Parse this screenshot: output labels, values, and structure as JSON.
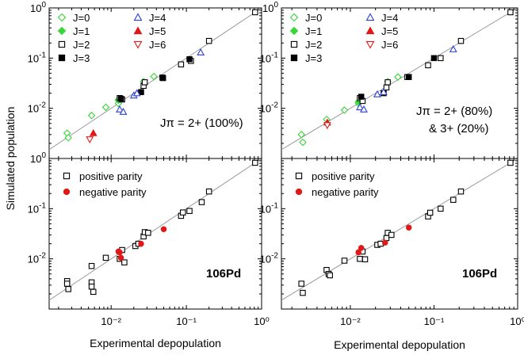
{
  "chart_data": {
    "type": "scatter",
    "xlabel": "Experimental depopulation",
    "ylabel": "Simulated population",
    "xscale": "log",
    "yscale": "log",
    "xlim": [
      0.0015,
      1
    ],
    "ylim": [
      0.001,
      1
    ],
    "x_ticks": [
      "10⁻²",
      "10⁻¹",
      "10⁰"
    ],
    "panels": [
      {
        "id": "top-left",
        "legend": "top-left",
        "annotation_lines": [
          "Jπ = 2+ (100%)"
        ],
        "series": [
          {
            "name": "J=0",
            "marker": "diamond-open",
            "color": "#38d638",
            "points": [
              [
                0.0026,
                0.0032
              ],
              [
                0.0027,
                0.0026
              ],
              [
                0.0055,
                0.0072
              ],
              [
                0.0085,
                0.0105
              ],
              [
                0.0125,
                0.0125
              ],
              [
                0.0125,
                0.0145
              ],
              [
                0.027,
                0.034
              ],
              [
                0.037,
                0.043
              ]
            ]
          },
          {
            "name": "J=1",
            "marker": "diamond-filled",
            "color": "#38d638",
            "points": [
              [
                0.0125,
                0.0148
              ],
              [
                0.0135,
                0.015
              ]
            ]
          },
          {
            "name": "J=2",
            "marker": "square-open",
            "color": "#000000",
            "points": [
              [
                0.013,
                0.016
              ],
              [
                0.014,
                0.015
              ],
              [
                0.027,
                0.028
              ],
              [
                0.028,
                0.033
              ],
              [
                0.048,
                0.041
              ],
              [
                0.085,
                0.075
              ],
              [
                0.115,
                0.088
              ],
              [
                0.2,
                0.22
              ],
              [
                0.82,
                0.82
              ]
            ]
          },
          {
            "name": "J=3",
            "marker": "square-filled",
            "color": "#000000",
            "points": [
              [
                0.0135,
                0.0155
              ],
              [
                0.025,
                0.021
              ],
              [
                0.049,
                0.04
              ],
              [
                0.11,
                0.095
              ]
            ]
          },
          {
            "name": "J=4",
            "marker": "triangle-up-open",
            "color": "#2b3fd6",
            "points": [
              [
                0.013,
                0.0095
              ],
              [
                0.0145,
                0.0085
              ],
              [
                0.02,
                0.018
              ],
              [
                0.022,
                0.02
              ],
              [
                0.155,
                0.13
              ]
            ]
          },
          {
            "name": "J=5",
            "marker": "triangle-up-filled",
            "color": "#e01818",
            "points": [
              [
                0.0058,
                0.0032
              ]
            ]
          },
          {
            "name": "J=6",
            "marker": "triangle-down-open",
            "color": "#e01818",
            "points": [
              [
                0.0052,
                0.0024
              ]
            ]
          }
        ]
      },
      {
        "id": "top-right",
        "legend": "top-left",
        "annotation_lines": [
          "Jπ = 2+ (80%)",
          "& 3+ (20%)"
        ],
        "series": [
          {
            "name": "J=0",
            "marker": "diamond-open",
            "color": "#38d638",
            "points": [
              [
                0.0026,
                0.003
              ],
              [
                0.0027,
                0.0021
              ],
              [
                0.0052,
                0.006
              ],
              [
                0.0085,
                0.0092
              ],
              [
                0.0125,
                0.0125
              ],
              [
                0.028,
                0.034
              ],
              [
                0.037,
                0.042
              ]
            ]
          },
          {
            "name": "J=1",
            "marker": "diamond-filled",
            "color": "#38d638",
            "points": [
              [
                0.0125,
                0.0135
              ],
              [
                0.0135,
                0.0142
              ]
            ]
          },
          {
            "name": "J=2",
            "marker": "square-open",
            "color": "#000000",
            "points": [
              [
                0.013,
                0.016
              ],
              [
                0.014,
                0.014
              ],
              [
                0.027,
                0.026
              ],
              [
                0.028,
                0.033
              ],
              [
                0.048,
                0.042
              ],
              [
                0.085,
                0.072
              ],
              [
                0.12,
                0.1
              ],
              [
                0.21,
                0.22
              ],
              [
                0.82,
                0.82
              ]
            ]
          },
          {
            "name": "J=3",
            "marker": "square-filled",
            "color": "#000000",
            "points": [
              [
                0.0135,
                0.017
              ],
              [
                0.025,
                0.02
              ],
              [
                0.05,
                0.042
              ],
              [
                0.1,
                0.1
              ]
            ]
          },
          {
            "name": "J=4",
            "marker": "triangle-up-open",
            "color": "#2b3fd6",
            "points": [
              [
                0.013,
                0.0105
              ],
              [
                0.0145,
                0.0095
              ],
              [
                0.021,
                0.019
              ],
              [
                0.025,
                0.021
              ],
              [
                0.17,
                0.15
              ]
            ]
          },
          {
            "name": "J=5",
            "marker": "triangle-up-filled",
            "color": "#e01818",
            "points": [
              [
                0.0053,
                0.0052
              ]
            ]
          },
          {
            "name": "J=6",
            "marker": "triangle-down-open",
            "color": "#e01818",
            "points": [
              [
                0.0053,
                0.0046
              ]
            ]
          }
        ]
      },
      {
        "id": "bottom-left",
        "legend": "top-left",
        "annotation_lines": [
          "106Pd"
        ],
        "series": [
          {
            "name": "positive parity",
            "marker": "square-open",
            "color": "#000000",
            "points": [
              [
                0.0026,
                0.0036
              ],
              [
                0.0026,
                0.0032
              ],
              [
                0.0027,
                0.0025
              ],
              [
                0.0055,
                0.0034
              ],
              [
                0.0055,
                0.0028
              ],
              [
                0.0058,
                0.0022
              ],
              [
                0.0055,
                0.0072
              ],
              [
                0.0085,
                0.0105
              ],
              [
                0.013,
                0.01
              ],
              [
                0.014,
                0.015
              ],
              [
                0.015,
                0.0085
              ],
              [
                0.021,
                0.018
              ],
              [
                0.023,
                0.02
              ],
              [
                0.027,
                0.028
              ],
              [
                0.028,
                0.034
              ],
              [
                0.031,
                0.033
              ],
              [
                0.085,
                0.072
              ],
              [
                0.09,
                0.084
              ],
              [
                0.11,
                0.09
              ],
              [
                0.16,
                0.135
              ],
              [
                0.2,
                0.22
              ],
              [
                0.82,
                0.82
              ]
            ]
          },
          {
            "name": "negative parity",
            "marker": "circle-filled",
            "color": "#e01818",
            "points": [
              [
                0.0125,
                0.014
              ],
              [
                0.013,
                0.0135
              ],
              [
                0.0135,
                0.0105
              ],
              [
                0.025,
                0.02
              ],
              [
                0.05,
                0.039
              ]
            ]
          }
        ]
      },
      {
        "id": "bottom-right",
        "legend": "top-left",
        "annotation_lines": [
          "106Pd"
        ],
        "series": [
          {
            "name": "positive parity",
            "marker": "square-open",
            "color": "#000000",
            "points": [
              [
                0.0026,
                0.0032
              ],
              [
                0.0027,
                0.0021
              ],
              [
                0.0052,
                0.006
              ],
              [
                0.0055,
                0.005
              ],
              [
                0.0057,
                0.0047
              ],
              [
                0.0085,
                0.0092
              ],
              [
                0.013,
                0.01
              ],
              [
                0.014,
                0.014
              ],
              [
                0.015,
                0.0098
              ],
              [
                0.021,
                0.019
              ],
              [
                0.023,
                0.02
              ],
              [
                0.027,
                0.026
              ],
              [
                0.028,
                0.033
              ],
              [
                0.031,
                0.03
              ],
              [
                0.085,
                0.07
              ],
              [
                0.09,
                0.083
              ],
              [
                0.12,
                0.1
              ],
              [
                0.17,
                0.15
              ],
              [
                0.21,
                0.22
              ],
              [
                0.82,
                0.82
              ]
            ]
          },
          {
            "name": "negative parity",
            "marker": "circle-filled",
            "color": "#e01818",
            "points": [
              [
                0.0125,
                0.0135
              ],
              [
                0.0135,
                0.0165
              ],
              [
                0.026,
                0.021
              ],
              [
                0.05,
                0.042
              ]
            ]
          }
        ]
      }
    ]
  }
}
